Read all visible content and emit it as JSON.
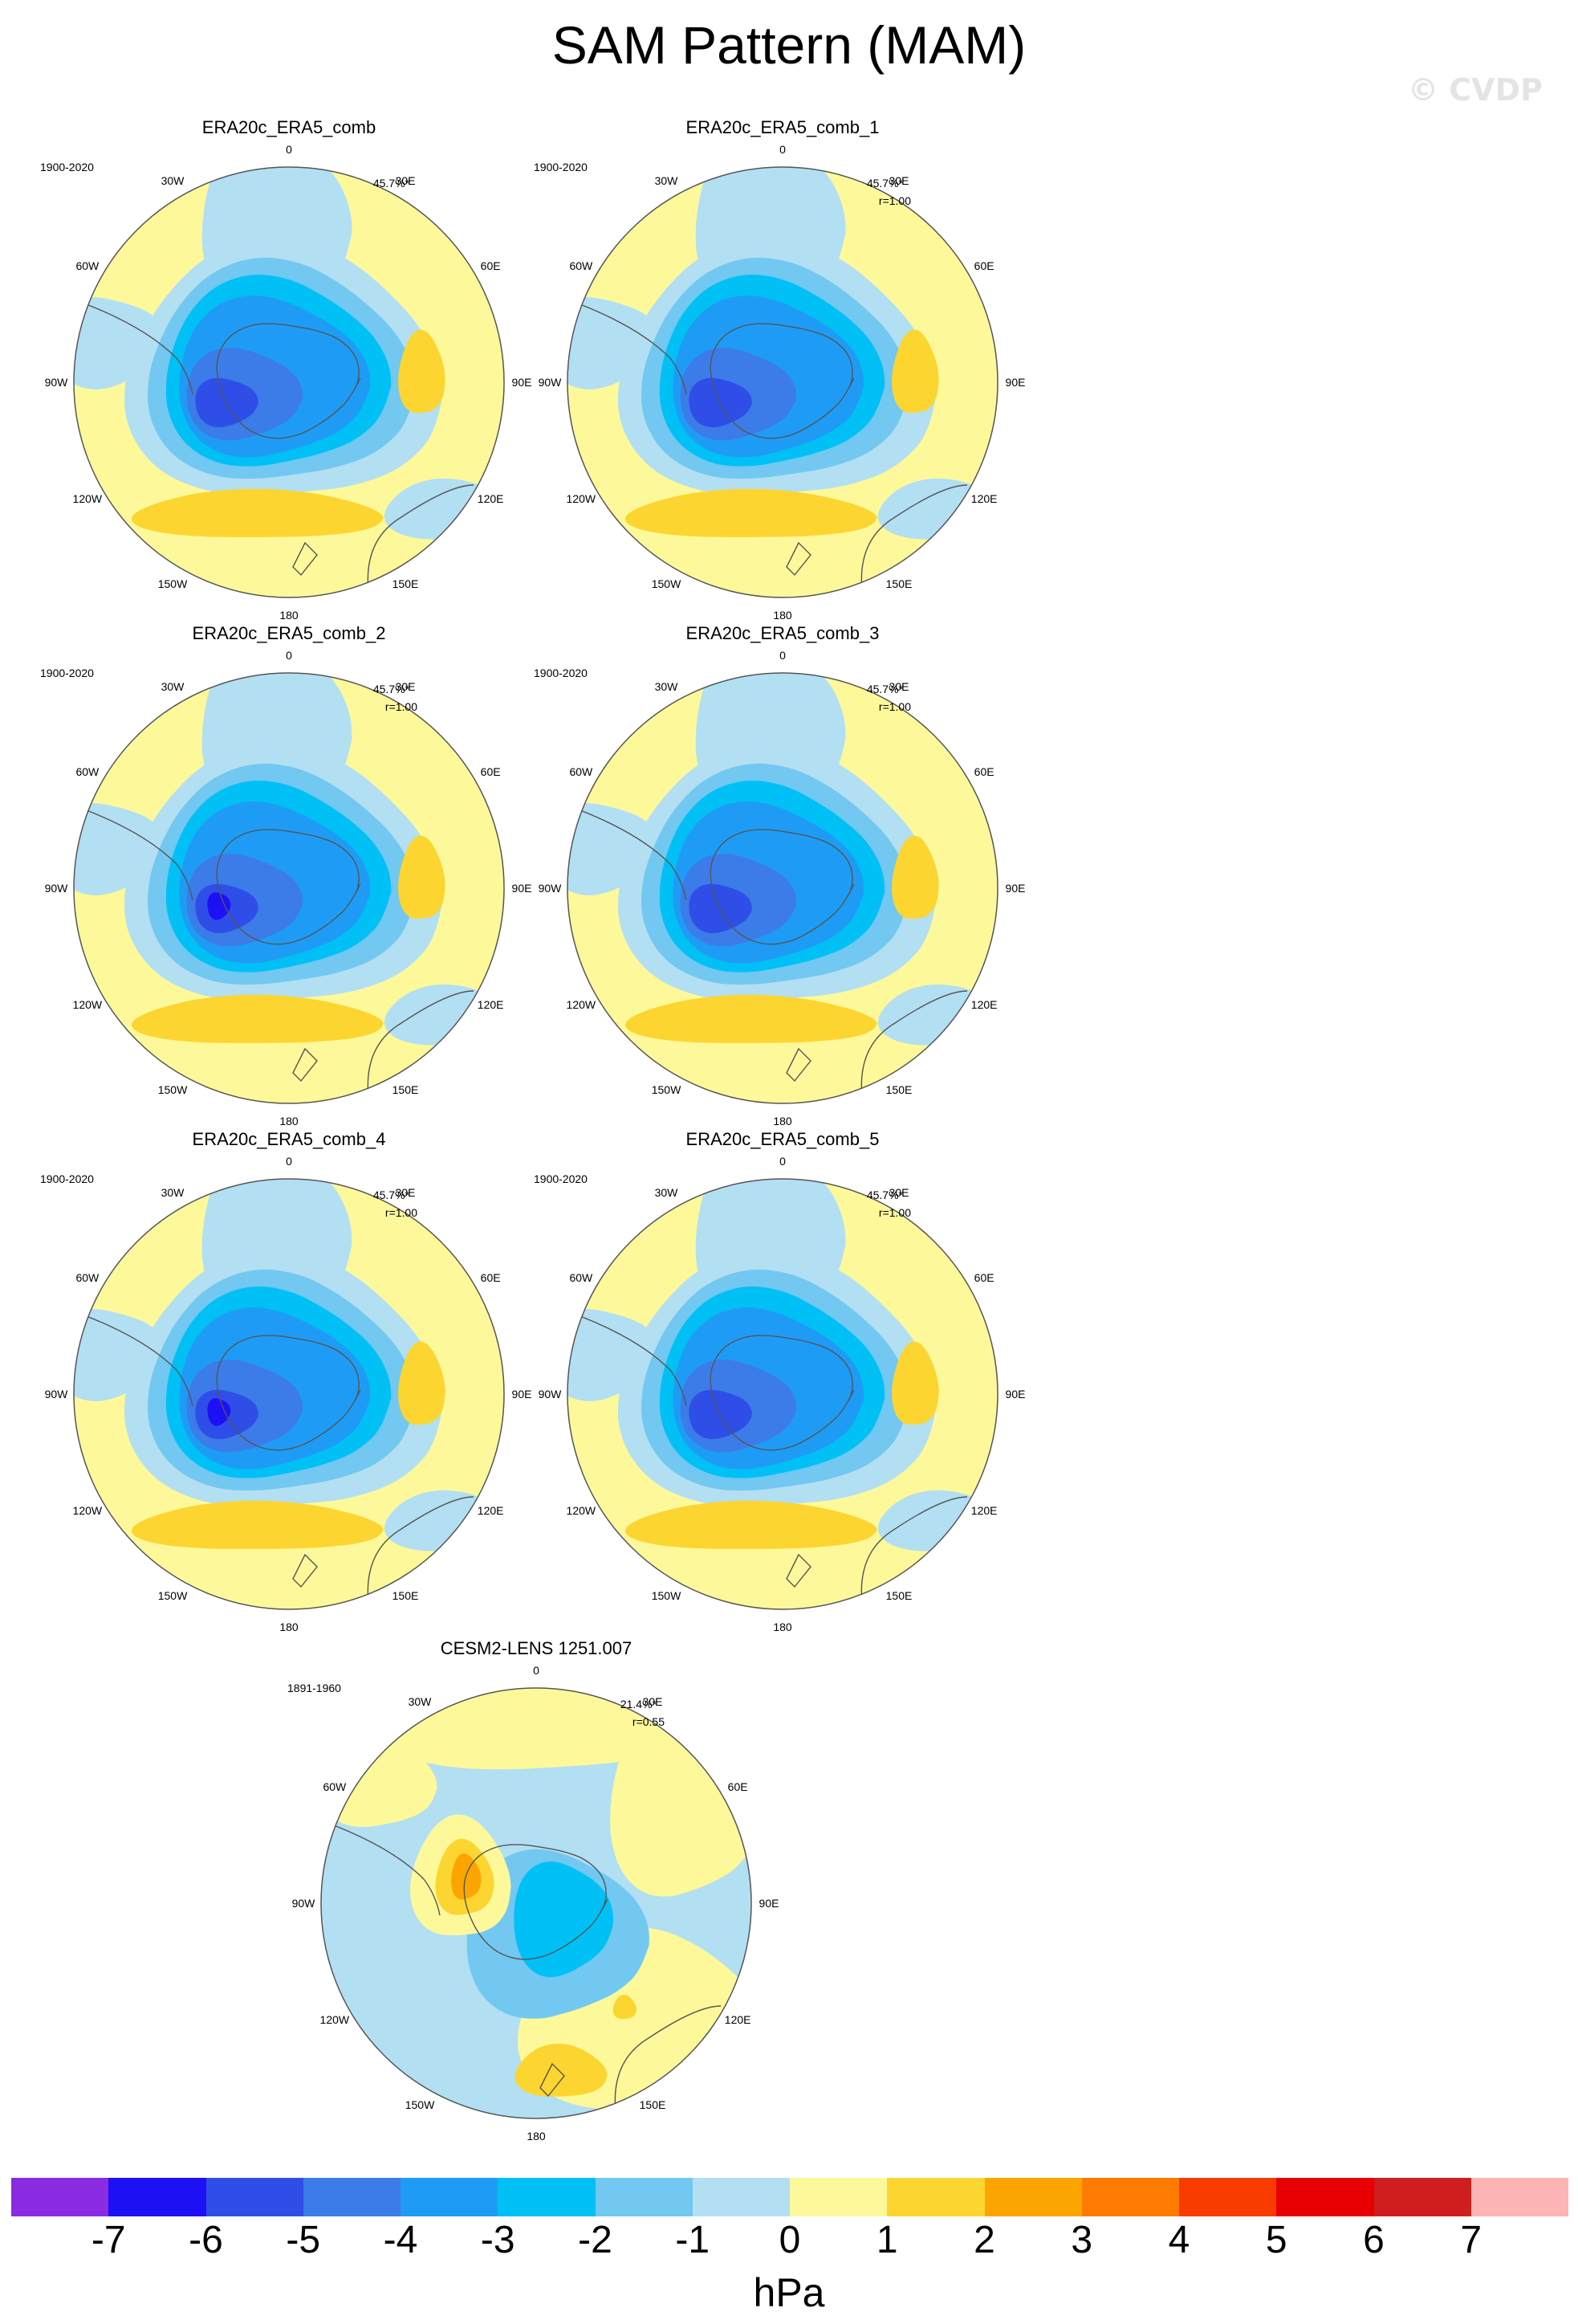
{
  "title": "SAM Pattern (MAM)",
  "watermark": "© CVDP",
  "panels": [
    {
      "name": "ERA20c_ERA5_comb",
      "years": "1900-2020",
      "pct": "45.7%*",
      "corr": ""
    },
    {
      "name": "ERA20c_ERA5_comb_1",
      "years": "1900-2020",
      "pct": "45.7%*",
      "corr": "r=1.00"
    },
    {
      "name": "ERA20c_ERA5_comb_2",
      "years": "1900-2020",
      "pct": "45.7%*",
      "corr": "r=1.00"
    },
    {
      "name": "ERA20c_ERA5_comb_3",
      "years": "1900-2020",
      "pct": "45.7%*",
      "corr": "r=1.00"
    },
    {
      "name": "ERA20c_ERA5_comb_4",
      "years": "1900-2020",
      "pct": "45.7%*",
      "corr": "r=1.00"
    },
    {
      "name": "ERA20c_ERA5_comb_5",
      "years": "1900-2020",
      "pct": "45.7%*",
      "corr": "r=1.00"
    },
    {
      "name": "CESM2-LENS 1251.007",
      "years": "1891-1960",
      "pct": "21.4%*",
      "corr": "r=0.55"
    }
  ],
  "lon_labels": [
    "0",
    "30E",
    "60E",
    "90E",
    "120E",
    "150E",
    "180",
    "150W",
    "120W",
    "90W",
    "60W",
    "30W"
  ],
  "colorbar": {
    "unit": "hPa",
    "tick_labels": [
      "-7",
      "-6",
      "-5",
      "-4",
      "-3",
      "-2",
      "-1",
      "0",
      "1",
      "2",
      "3",
      "4",
      "5",
      "6",
      "7"
    ],
    "colors": [
      "#8a2be2",
      "#1e10f5",
      "#2f4ee8",
      "#3b7ce8",
      "#1e9cf5",
      "#00c0f5",
      "#72c8f0",
      "#b3dff3",
      "#fdf99a",
      "#fcd530",
      "#fca500",
      "#fc7b00",
      "#f83c00",
      "#e80000",
      "#d01e1e",
      "#fdb4b4"
    ]
  }
}
